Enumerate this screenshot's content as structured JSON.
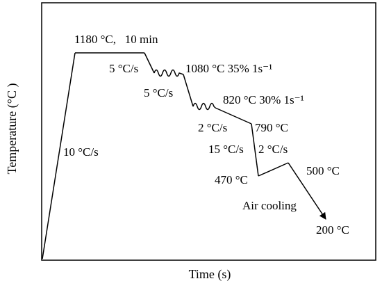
{
  "axes": {
    "x_title": "Time (s)",
    "y_title": "Temperature (°C )"
  },
  "annotations": {
    "reheat_rate": "10 °C/s",
    "soak": "1180 °C,   10 min",
    "cool_rate_1": "5 °C/s",
    "rough_pass": "1080 °C 35% 1s⁻¹",
    "cool_rate_2": "5 °C/s",
    "finish_pass": "820 °C 30% 1s⁻¹",
    "cool_rate_3": "2 °C/s",
    "temp_790": "790 °C",
    "cool_rate_4": "15 °C/s",
    "heat_rate_5": "2 °C/s",
    "temp_470": "470 °C",
    "temp_500": "500 °C",
    "air_cooling": "Air cooling",
    "temp_200": "200 °C"
  },
  "colors": {
    "line": "#000000",
    "background": "#ffffff"
  }
}
